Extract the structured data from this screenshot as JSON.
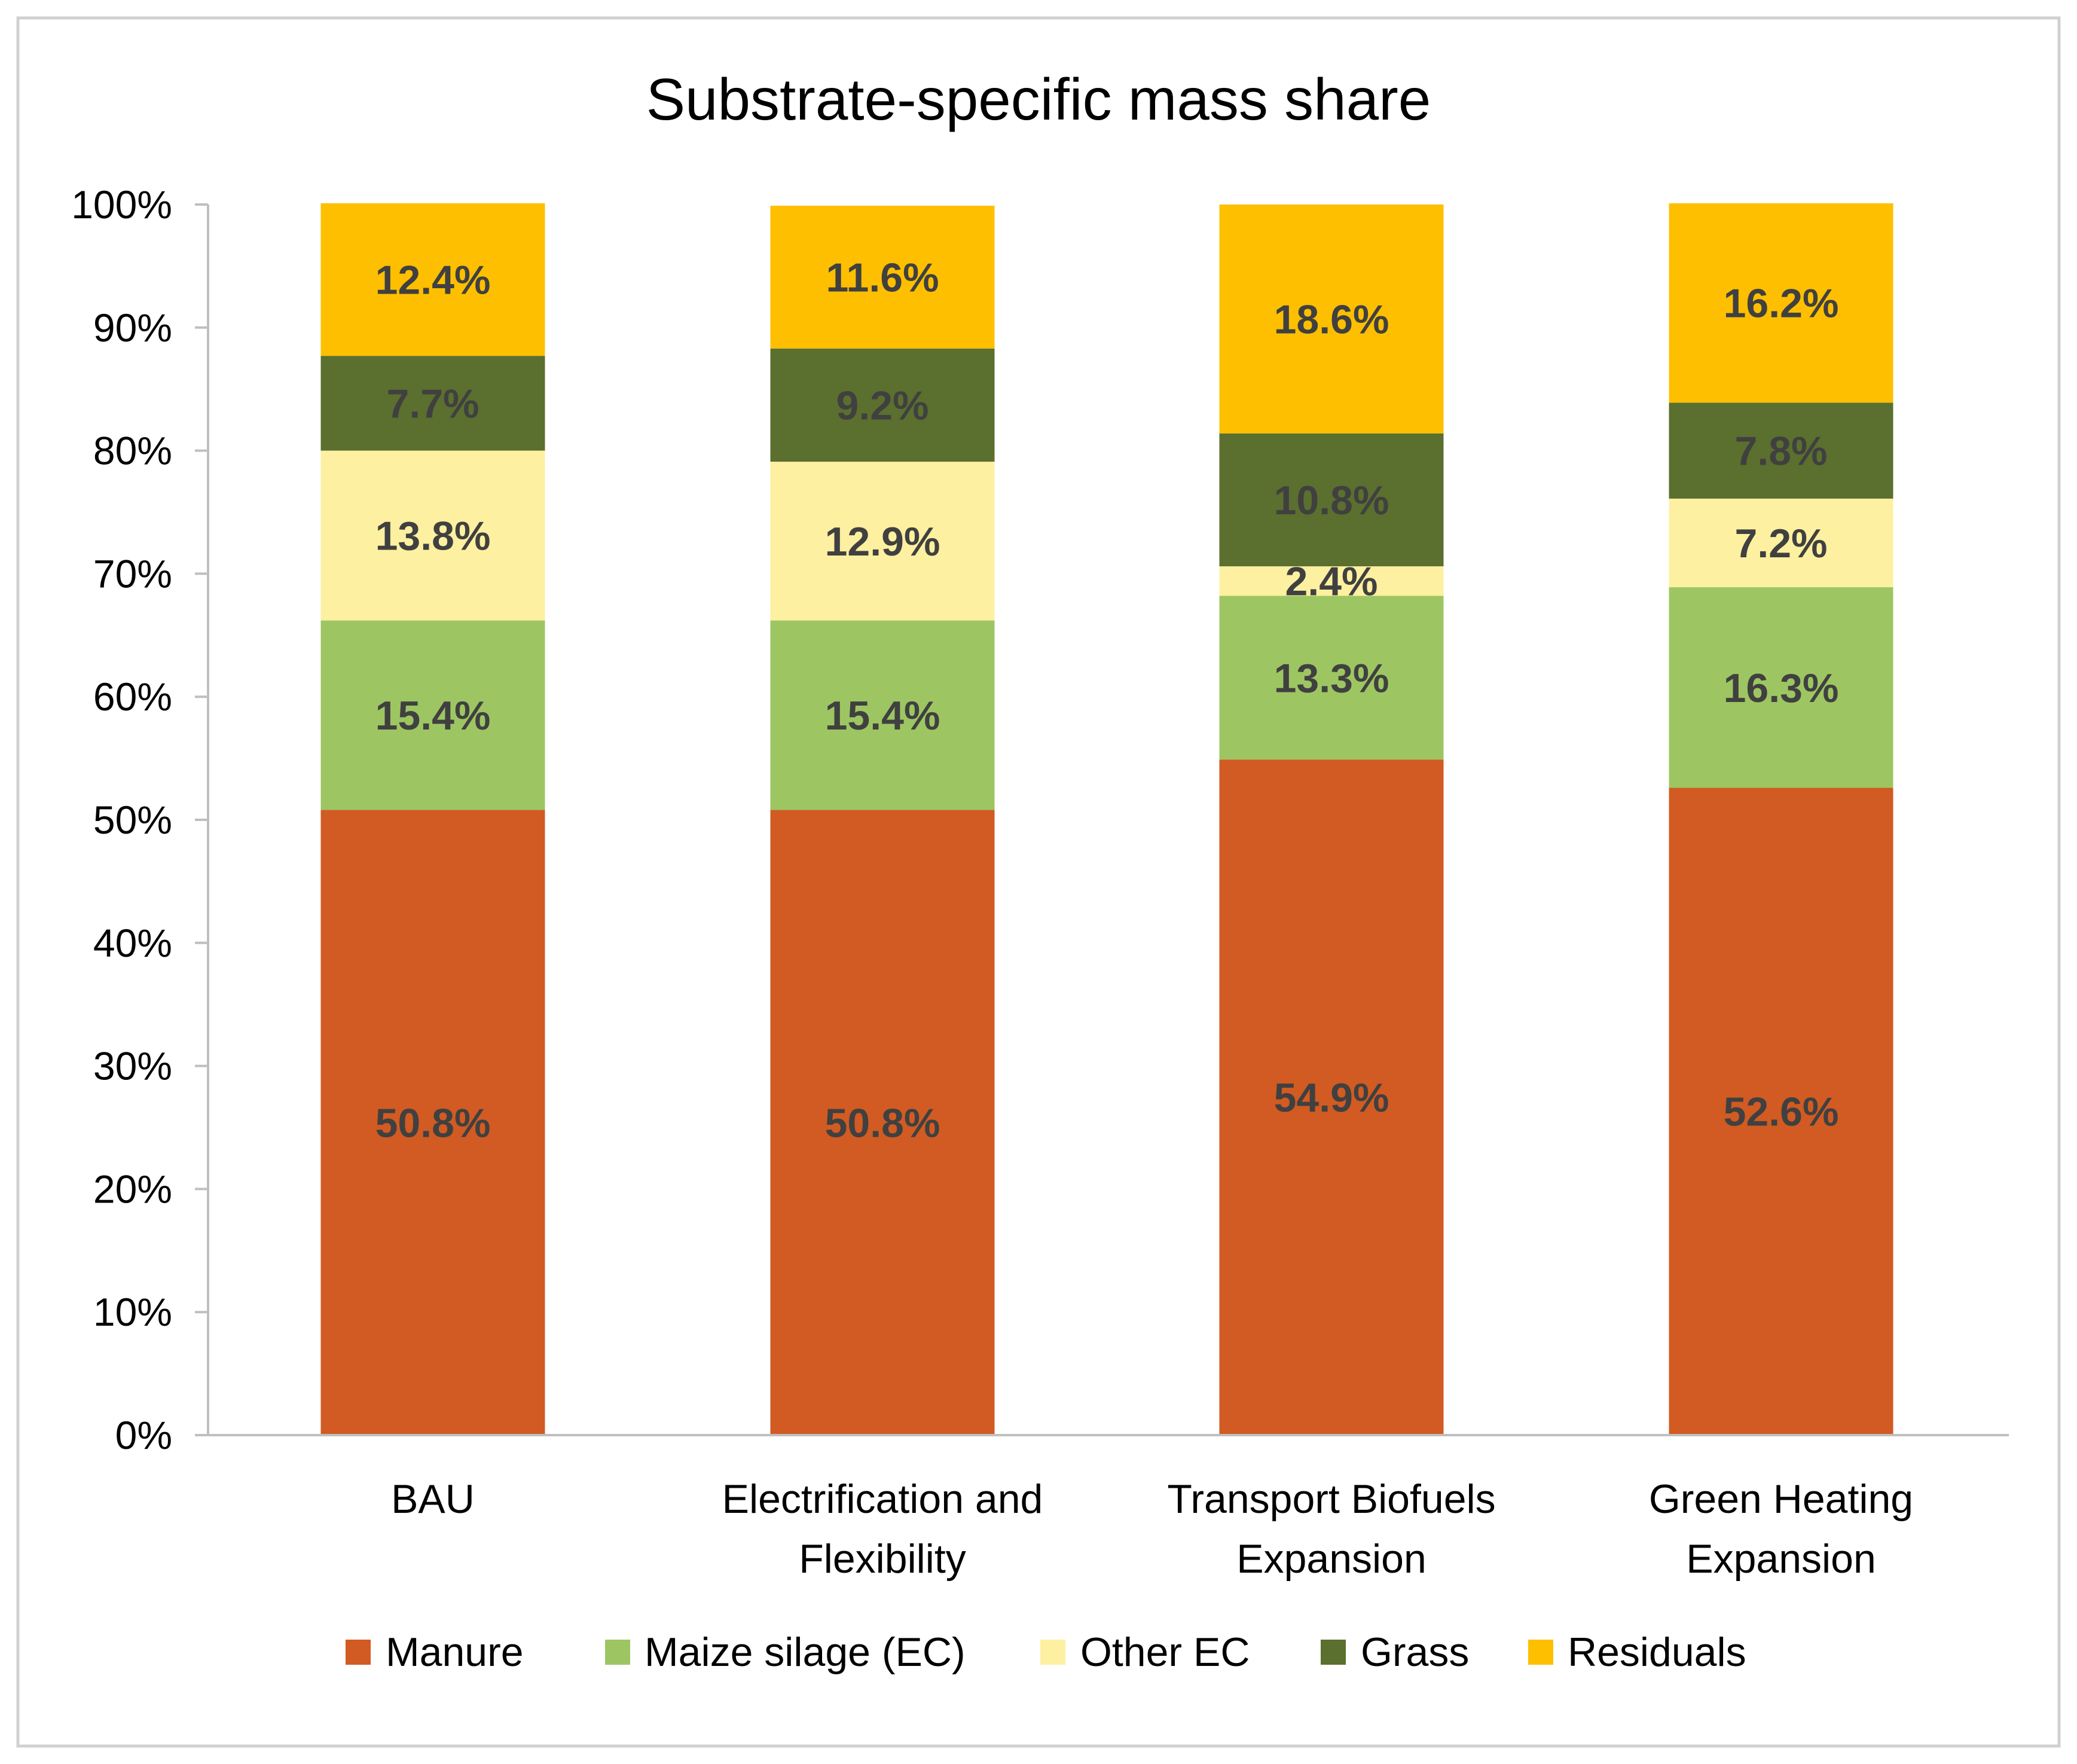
{
  "chart_data": {
    "type": "bar",
    "stacked": true,
    "title": "Substrate-specific mass share",
    "xlabel": "",
    "ylabel": "",
    "ylim": [
      0,
      100
    ],
    "yticks": [
      "0%",
      "10%",
      "20%",
      "30%",
      "40%",
      "50%",
      "60%",
      "70%",
      "80%",
      "90%",
      "100%"
    ],
    "grid": false,
    "legend_position": "bottom",
    "categories": [
      [
        "BAU"
      ],
      [
        "Electrification and",
        "Flexibility"
      ],
      [
        "Transport Biofuels",
        "Expansion"
      ],
      [
        "Green Heating",
        "Expansion"
      ]
    ],
    "series": [
      {
        "name": "Manure",
        "color": "#D15B22",
        "values": [
          50.8,
          50.8,
          54.9,
          52.6
        ],
        "labels": [
          "50.8%",
          "50.8%",
          "54.9%",
          "52.6%"
        ]
      },
      {
        "name": "Maize silage (EC)",
        "color": "#9DC662",
        "values": [
          15.4,
          15.4,
          13.3,
          16.3
        ],
        "labels": [
          "15.4%",
          "15.4%",
          "13.3%",
          "16.3%"
        ]
      },
      {
        "name": "Other EC",
        "color": "#FDF0A0",
        "values": [
          13.8,
          12.9,
          2.4,
          7.2
        ],
        "labels": [
          "13.8%",
          "12.9%",
          "2.4%",
          "7.2%"
        ]
      },
      {
        "name": "Grass",
        "color": "#5B6F2E",
        "values": [
          7.7,
          9.2,
          10.8,
          7.8
        ],
        "labels": [
          "7.7%",
          "9.2%",
          "10.8%",
          "7.8%"
        ]
      },
      {
        "name": "Residuals",
        "color": "#FEBF00",
        "values": [
          12.4,
          11.6,
          18.6,
          16.2
        ],
        "labels": [
          "12.4%",
          "11.6%",
          "18.6%",
          "16.2%"
        ]
      }
    ]
  },
  "colors": {
    "axis": "#BFBFBF",
    "frame": "#D0D0D0",
    "label_text": "#404040"
  }
}
